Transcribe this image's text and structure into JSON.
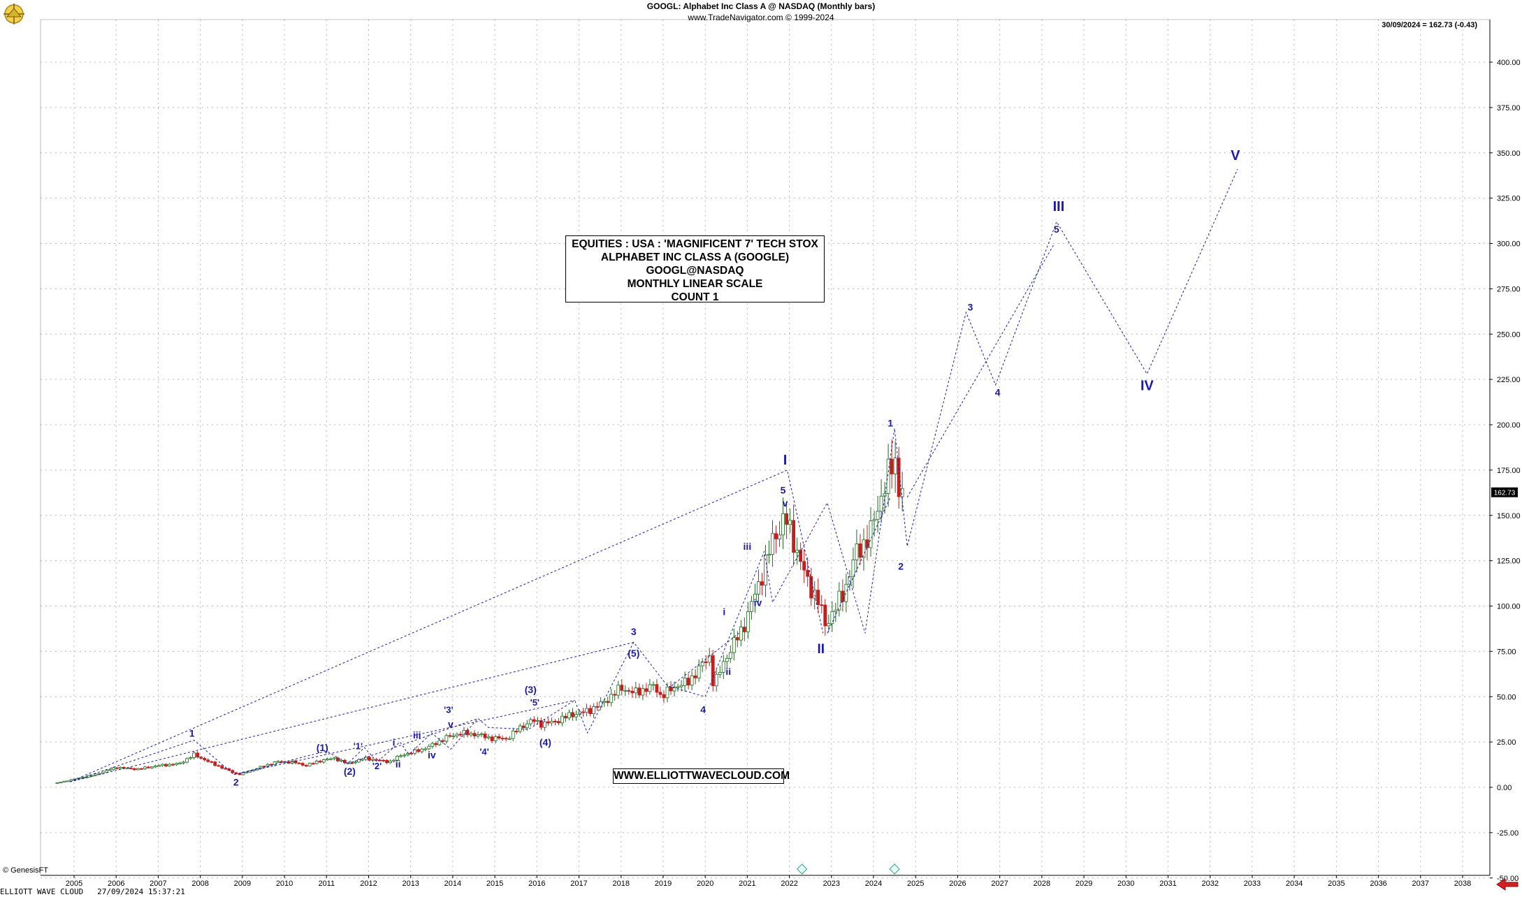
{
  "header": {
    "title": "GOOGL:  Alphabet Inc Class A @ NASDAQ  (Monthly bars)",
    "subtitle": "www.TradeNavigator.com © 1999-2024",
    "last_value": "30/09/2024 = 162.73 (-0.43)"
  },
  "info_box": {
    "lines": [
      "EQUITIES : USA : 'MAGNIFICENT 7' TECH STOX",
      "ALPHABET INC CLASS A (GOOGLE)",
      "GOOGL@NASDAQ",
      "MONTHLY LINEAR SCALE",
      "COUNT 1"
    ]
  },
  "website": "WWW.ELLIOTTWAVECLOUD.COM",
  "footer": {
    "credit": "© GenesisFT",
    "bottom": "ELLIOTT WAVE CLOUD   27/09/2024 15:37:21"
  },
  "colors": {
    "wave": "#1a1aa6",
    "up": "#1b6b1b",
    "down": "#c21f1f",
    "grid": "#b8b8b8"
  },
  "chart_data": {
    "type": "candlestick",
    "title": "GOOGL:  Alphabet Inc Class A @ NASDAQ  (Monthly bars)",
    "x_ticks": [
      "2005",
      "2006",
      "2007",
      "2008",
      "2009",
      "2010",
      "2011",
      "2012",
      "2013",
      "2014",
      "2015",
      "2016",
      "2017",
      "2018",
      "2019",
      "2020",
      "2021",
      "2022",
      "2023",
      "2024",
      "2025",
      "2026",
      "2027",
      "2028",
      "2029",
      "2030",
      "2031",
      "2032",
      "2033",
      "2034",
      "2035",
      "2036",
      "2037",
      "2038"
    ],
    "y_ticks": [
      -50,
      -25,
      0,
      25,
      50,
      75,
      100,
      125,
      150,
      175,
      200,
      225,
      250,
      275,
      300,
      325,
      350,
      375,
      400
    ],
    "y_tick_labels": [
      "-50.00",
      "-25.00",
      "0.00",
      "25.00",
      "50.00",
      "75.00",
      "100.00",
      "125.00",
      "150.00",
      "175.00",
      "200.00",
      "225.00",
      "250.00",
      "275.00",
      "300.00",
      "325.00",
      "350.00",
      "375.00",
      "400.00"
    ],
    "ylim": [
      -50,
      425
    ],
    "xlim": [
      2004.6,
      2039.0
    ],
    "last_price": 162.73,
    "last_price_label": "162.73",
    "price_path": [
      [
        2004.6,
        2.5
      ],
      [
        2005.0,
        4.5
      ],
      [
        2005.5,
        7
      ],
      [
        2006.0,
        11
      ],
      [
        2006.5,
        10
      ],
      [
        2007.0,
        12
      ],
      [
        2007.5,
        13
      ],
      [
        2007.85,
        18
      ],
      [
        2008.3,
        13
      ],
      [
        2008.7,
        9
      ],
      [
        2008.9,
        7
      ],
      [
        2009.3,
        10
      ],
      [
        2009.8,
        14
      ],
      [
        2010.2,
        14
      ],
      [
        2010.5,
        12
      ],
      [
        2010.9,
        15
      ],
      [
        2011.2,
        16
      ],
      [
        2011.5,
        13
      ],
      [
        2011.9,
        16
      ],
      [
        2012.2,
        15
      ],
      [
        2012.5,
        14
      ],
      [
        2012.8,
        18
      ],
      [
        2013.0,
        19
      ],
      [
        2013.4,
        22
      ],
      [
        2013.9,
        28
      ],
      [
        2014.2,
        30
      ],
      [
        2014.6,
        29
      ],
      [
        2014.9,
        27
      ],
      [
        2015.3,
        27
      ],
      [
        2015.6,
        33
      ],
      [
        2015.9,
        37
      ],
      [
        2016.1,
        35
      ],
      [
        2016.4,
        36
      ],
      [
        2016.8,
        40
      ],
      [
        2017.2,
        42
      ],
      [
        2017.6,
        47
      ],
      [
        2018.0,
        55
      ],
      [
        2018.3,
        52
      ],
      [
        2018.8,
        56
      ],
      [
        2018.95,
        50
      ],
      [
        2019.3,
        56
      ],
      [
        2019.6,
        58
      ],
      [
        2019.9,
        67
      ],
      [
        2020.1,
        72
      ],
      [
        2020.2,
        56
      ],
      [
        2020.5,
        72
      ],
      [
        2020.9,
        88
      ],
      [
        2021.3,
        114
      ],
      [
        2021.6,
        136
      ],
      [
        2021.9,
        149
      ],
      [
        2022.1,
        136
      ],
      [
        2022.4,
        115
      ],
      [
        2022.7,
        102
      ],
      [
        2022.85,
        90
      ],
      [
        2023.0,
        95
      ],
      [
        2023.3,
        108
      ],
      [
        2023.6,
        130
      ],
      [
        2023.9,
        138
      ],
      [
        2024.1,
        155
      ],
      [
        2024.4,
        175
      ],
      [
        2024.5,
        183
      ],
      [
        2024.6,
        165
      ],
      [
        2024.75,
        162.73
      ]
    ],
    "wave_lines": [
      [
        [
          2004.9,
          3
        ],
        [
          2007.85,
          26
        ],
        [
          2008.8,
          7
        ],
        [
          2011.0,
          20
        ],
        [
          2011.5,
          13
        ],
        [
          2011.9,
          22
        ],
        [
          2012.2,
          14
        ],
        [
          2012.75,
          25
        ],
        [
          2012.95,
          18
        ],
        [
          2013.5,
          30
        ],
        [
          2013.95,
          21
        ],
        [
          2014.6,
          38
        ],
        [
          2014.85,
          33
        ],
        [
          2015.8,
          32
        ],
        [
          2016.9,
          48
        ],
        [
          2017.2,
          30
        ],
        [
          2018.3,
          80
        ],
        [
          2019.1,
          56
        ],
        [
          2020.0,
          50
        ],
        [
          2021.4,
          130
        ],
        [
          2021.6,
          102
        ],
        [
          2022.9,
          157
        ],
        [
          2023.8,
          85
        ],
        [
          2024.5,
          198
        ],
        [
          2024.8,
          133
        ],
        [
          2026.2,
          262
        ],
        [
          2026.9,
          222
        ],
        [
          2028.35,
          312
        ],
        [
          2030.5,
          228
        ],
        [
          2032.65,
          341
        ]
      ],
      [
        [
          2004.9,
          3
        ],
        [
          2021.95,
          175
        ],
        [
          2022.8,
          85
        ]
      ],
      [
        [
          2004.9,
          3
        ],
        [
          2018.3,
          80
        ]
      ],
      [
        [
          2008.8,
          7
        ],
        [
          2016.9,
          48
        ]
      ],
      [
        [
          2011.5,
          13
        ],
        [
          2014.6,
          38
        ]
      ],
      [
        [
          2019.2,
          56
        ],
        [
          2020.8,
          85
        ]
      ],
      [
        [
          2022.9,
          85
        ],
        [
          2024.4,
          160
        ]
      ],
      [
        [
          2024.8,
          160
        ],
        [
          2028.3,
          300
        ]
      ]
    ],
    "annotations": [
      {
        "t": "1",
        "x": 2007.8,
        "y": 28,
        "s": 14
      },
      {
        "t": "2",
        "x": 2008.85,
        "y": 1,
        "s": 14
      },
      {
        "t": "(1)",
        "x": 2010.9,
        "y": 20,
        "s": 14
      },
      {
        "t": "(2)",
        "x": 2011.55,
        "y": 7,
        "s": 14
      },
      {
        "t": "'1'",
        "x": 2011.75,
        "y": 21,
        "s": 13
      },
      {
        "t": "'2'",
        "x": 2012.2,
        "y": 10,
        "s": 13
      },
      {
        "t": "i",
        "x": 2012.6,
        "y": 23,
        "s": 14
      },
      {
        "t": "ii",
        "x": 2012.7,
        "y": 11,
        "s": 14
      },
      {
        "t": "iii",
        "x": 2013.15,
        "y": 27,
        "s": 14
      },
      {
        "t": "iv",
        "x": 2013.5,
        "y": 16,
        "s": 14
      },
      {
        "t": "'3'",
        "x": 2013.9,
        "y": 41,
        "s": 13
      },
      {
        "t": "v",
        "x": 2013.95,
        "y": 33,
        "s": 14
      },
      {
        "t": "'4'",
        "x": 2014.75,
        "y": 18,
        "s": 13
      },
      {
        "t": "(3)",
        "x": 2015.85,
        "y": 52,
        "s": 14
      },
      {
        "t": "'5'",
        "x": 2015.95,
        "y": 45,
        "s": 13
      },
      {
        "t": "(4)",
        "x": 2016.2,
        "y": 23,
        "s": 14
      },
      {
        "t": "3",
        "x": 2018.3,
        "y": 84,
        "s": 14
      },
      {
        "t": "(5)",
        "x": 2018.3,
        "y": 72,
        "s": 14
      },
      {
        "t": "4",
        "x": 2019.95,
        "y": 41,
        "s": 14
      },
      {
        "t": "i",
        "x": 2020.45,
        "y": 95,
        "s": 14
      },
      {
        "t": "ii",
        "x": 2020.55,
        "y": 62,
        "s": 14
      },
      {
        "t": "iii",
        "x": 2021.0,
        "y": 131,
        "s": 14
      },
      {
        "t": "iv",
        "x": 2021.25,
        "y": 100,
        "s": 14
      },
      {
        "t": "5",
        "x": 2021.85,
        "y": 162,
        "s": 14
      },
      {
        "t": "v",
        "x": 2021.9,
        "y": 155,
        "s": 14
      },
      {
        "t": "I",
        "x": 2021.9,
        "y": 178,
        "s": 20
      },
      {
        "t": "II",
        "x": 2022.75,
        "y": 74,
        "s": 19
      },
      {
        "t": "1",
        "x": 2024.4,
        "y": 199,
        "s": 14
      },
      {
        "t": "2",
        "x": 2024.65,
        "y": 120,
        "s": 14
      },
      {
        "t": "3",
        "x": 2026.3,
        "y": 263,
        "s": 14
      },
      {
        "t": "4",
        "x": 2026.95,
        "y": 216,
        "s": 14
      },
      {
        "t": "5",
        "x": 2028.35,
        "y": 306,
        "s": 14
      },
      {
        "t": "III",
        "x": 2028.4,
        "y": 318,
        "s": 20
      },
      {
        "t": "IV",
        "x": 2030.5,
        "y": 219,
        "s": 20
      },
      {
        "t": "V",
        "x": 2032.6,
        "y": 346,
        "s": 20
      }
    ]
  }
}
